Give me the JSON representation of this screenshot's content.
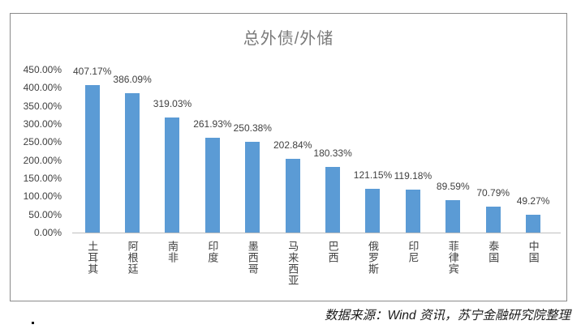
{
  "chart_data": {
    "type": "bar",
    "title": "总外债/外储",
    "categories": [
      "土耳其",
      "阿根廷",
      "南非",
      "印度",
      "墨西哥",
      "马来西亚",
      "巴西",
      "俄罗斯",
      "印尼",
      "菲律宾",
      "泰国",
      "中国"
    ],
    "values": [
      407.17,
      386.09,
      319.03,
      261.93,
      250.38,
      202.84,
      180.33,
      121.15,
      119.18,
      89.59,
      70.79,
      49.27
    ],
    "value_labels": [
      "407.17%",
      "386.09%",
      "319.03%",
      "261.93%",
      "250.38%",
      "202.84%",
      "180.33%",
      "121.15%",
      "119.18%",
      "89.59%",
      "70.79%",
      "49.27%"
    ],
    "y_ticks": [
      {
        "value": 450,
        "label": "450.00%"
      },
      {
        "value": 400,
        "label": "400.00%"
      },
      {
        "value": 350,
        "label": "350.00%"
      },
      {
        "value": 300,
        "label": "300.00%"
      },
      {
        "value": 250,
        "label": "250.00%"
      },
      {
        "value": 200,
        "label": "200.00%"
      },
      {
        "value": 150,
        "label": "150.00%"
      },
      {
        "value": 100,
        "label": "100.00%"
      },
      {
        "value": 50,
        "label": "50.00%"
      },
      {
        "value": 0,
        "label": "0.00%"
      }
    ],
    "ylim": [
      0,
      450
    ],
    "grid": false,
    "legend": null,
    "bar_color": "#5B9BD5"
  },
  "source_note": "数据来源：Wind 资讯，苏宁金融研究院整理",
  "colors": {
    "bar": "#5B9BD5",
    "title_text": "#7a7a7a",
    "axis_text": "#404040",
    "axis_line": "#bfbfbf",
    "frame_border": "#8a8a8a"
  }
}
